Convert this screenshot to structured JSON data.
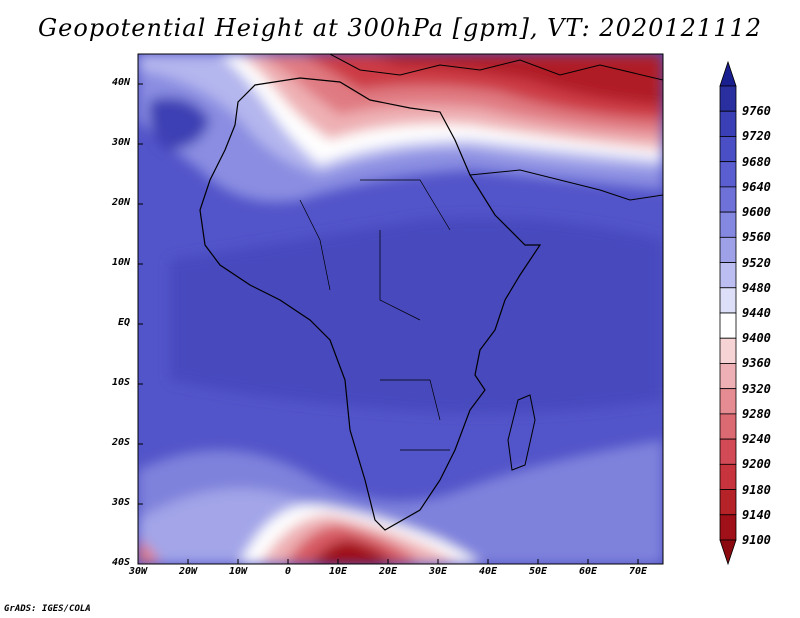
{
  "title": "Geopotential Height at 300hPa [gpm], VT: 2020121112",
  "credit": "GrADS: IGES/COLA",
  "map": {
    "projection": "latlon",
    "lon_range": [
      -30,
      75
    ],
    "lat_range": [
      -40,
      45
    ],
    "y_ticks": [
      {
        "lat": 40,
        "label": "40N"
      },
      {
        "lat": 30,
        "label": "30N"
      },
      {
        "lat": 20,
        "label": "20N"
      },
      {
        "lat": 10,
        "label": "10N"
      },
      {
        "lat": 0,
        "label": "EQ"
      },
      {
        "lat": -10,
        "label": "10S"
      },
      {
        "lat": -20,
        "label": "20S"
      },
      {
        "lat": -30,
        "label": "30S"
      },
      {
        "lat": -40,
        "label": "40S"
      }
    ],
    "x_ticks": [
      {
        "lon": -30,
        "label": "30W"
      },
      {
        "lon": -20,
        "label": "20W"
      },
      {
        "lon": -10,
        "label": "10W"
      },
      {
        "lon": 0,
        "label": "0"
      },
      {
        "lon": 10,
        "label": "10E"
      },
      {
        "lon": 20,
        "label": "20E"
      },
      {
        "lon": 30,
        "label": "30E"
      },
      {
        "lon": 40,
        "label": "40E"
      },
      {
        "lon": 50,
        "label": "50E"
      },
      {
        "lon": 60,
        "label": "60E"
      },
      {
        "lon": 70,
        "label": "70E"
      }
    ]
  },
  "colorbar": {
    "labels": [
      "9760",
      "9720",
      "9680",
      "9640",
      "9600",
      "9560",
      "9520",
      "9480",
      "9440",
      "9400",
      "9360",
      "9320",
      "9280",
      "9240",
      "9200",
      "9180",
      "9140",
      "9100"
    ],
    "colors": [
      "#2a2fa0",
      "#3a3fb5",
      "#4a4fc6",
      "#5a5ed0",
      "#6e72d8",
      "#8588e0",
      "#9fa1e8",
      "#bcbdf0",
      "#dddef7",
      "#ffffff",
      "#f6d4d6",
      "#eeb0b4",
      "#e58c92",
      "#dc6a72",
      "#d24a55",
      "#c8343d",
      "#b52228",
      "#a01018"
    ],
    "top_arrow_color": "#1a1f90",
    "bottom_arrow_color": "#8a0a10"
  }
}
